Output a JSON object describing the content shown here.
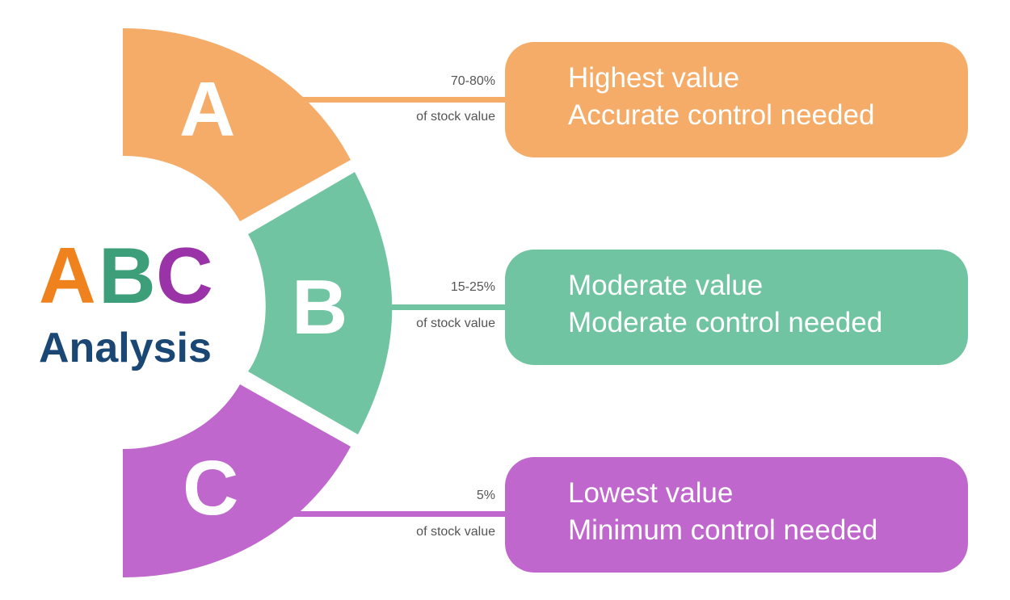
{
  "title": {
    "letters": [
      {
        "text": "A",
        "color": "#F0821E"
      },
      {
        "text": "B",
        "color": "#3D9E7A"
      },
      {
        "text": "C",
        "color": "#9A33A8"
      }
    ],
    "word": "Analysis",
    "word_color": "#1B4774"
  },
  "segments": [
    {
      "letter": "A",
      "color": "#F4AC68",
      "percent": "70-80%",
      "sub": "of stock value",
      "line1": "Highest value",
      "line2": "Accurate control needed"
    },
    {
      "letter": "B",
      "color": "#70C4A1",
      "percent": "15-25%",
      "sub": "of stock value",
      "line1": "Moderate value",
      "line2": "Moderate control needed"
    },
    {
      "letter": "C",
      "color": "#BF67CC",
      "percent": "5%",
      "sub": "of stock value",
      "line1": "Lowest value",
      "line2": "Minimum control needed"
    }
  ]
}
